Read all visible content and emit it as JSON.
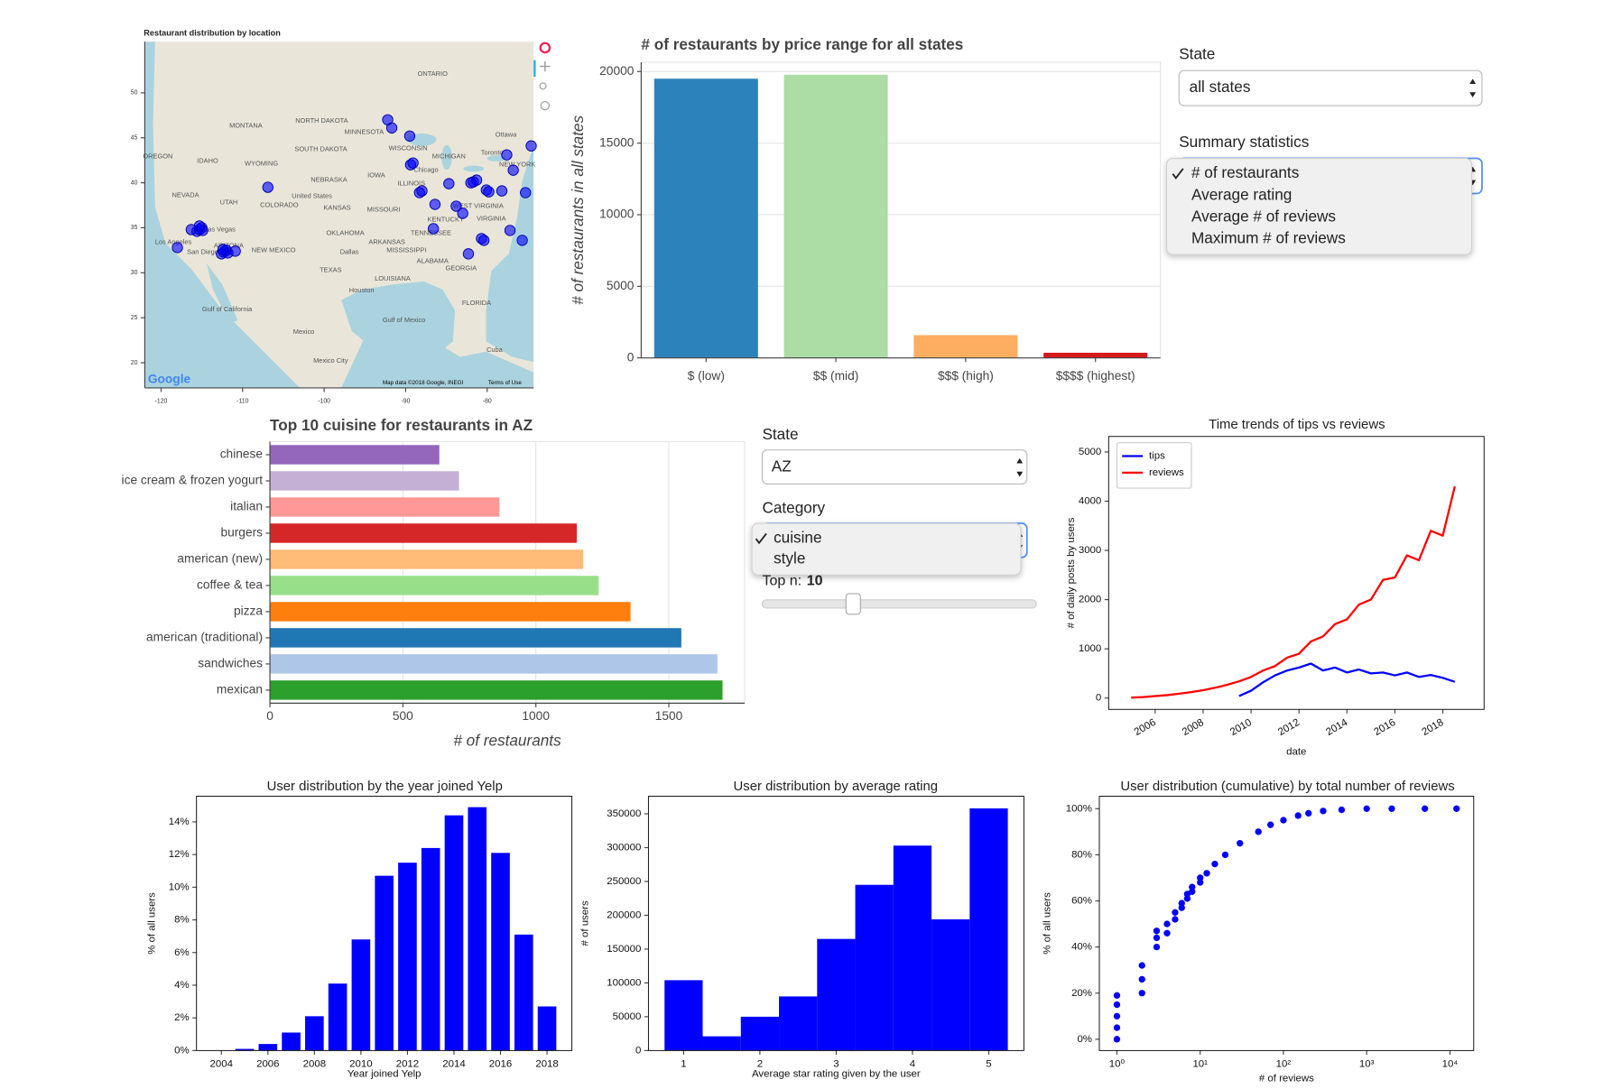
{
  "chart_data": [
    {
      "type": "map",
      "title": "Restaurant distribution by location",
      "xlim": [
        -122,
        -74.3
      ],
      "ylim": [
        17.2,
        55.7
      ],
      "xticks": [
        -120,
        -110,
        -100,
        -90,
        -80
      ],
      "yticks": [
        20,
        25,
        30,
        35,
        40,
        45,
        50
      ],
      "color": "#0000ff",
      "x": [
        -115.3,
        -115.0,
        -115.6,
        -114.9,
        -115.3,
        -112.3,
        -112.0,
        -112.6,
        -111.8,
        -112.4,
        -89.4,
        -89.1,
        -88.3,
        -88.0,
        -81.7,
        -81.3,
        -82.0,
        -80.1,
        -79.8,
        -80.7,
        -80.4,
        -116.3,
        -118,
        -110.9,
        -106.9,
        -84.7,
        -86.4,
        -78.2,
        -76.8,
        -75.3,
        -83,
        -77.2,
        -75.7,
        -86.6,
        -92.2,
        -89.5,
        -91.7,
        -83.8,
        -82.3,
        -77.6,
        -74.6
      ],
      "y": [
        34.8,
        35.0,
        34.6,
        34.7,
        35.2,
        32.3,
        32.5,
        32.1,
        32.2,
        32.6,
        42.0,
        42.2,
        38.9,
        39.1,
        40.1,
        40.3,
        40.0,
        39.2,
        39.0,
        33.8,
        33.6,
        34.8,
        32.8,
        32.4,
        39.5,
        39.9,
        37.6,
        39.1,
        41.4,
        38.9,
        36.6,
        34.7,
        33.6,
        34.9,
        47.0,
        45.2,
        46.1,
        37.4,
        32.1,
        43.1,
        44.1
      ],
      "places": [
        {
          "name": "ONTARIO",
          "lon": -86.7,
          "lat": 52.1
        },
        {
          "name": "MONTANA",
          "lon": -109.6,
          "lat": 46.3
        },
        {
          "name": "NORTH DAKOTA",
          "lon": -100.3,
          "lat": 46.9
        },
        {
          "name": "MINNESOTA",
          "lon": -95.1,
          "lat": 45.6
        },
        {
          "name": "SOUTH DAKOTA",
          "lon": -100.4,
          "lat": 43.7
        },
        {
          "name": "WISCONSIN",
          "lon": -89.7,
          "lat": 43.8
        },
        {
          "name": "MICHIGAN",
          "lon": -84.7,
          "lat": 42.9
        },
        {
          "name": "NEBRASKA",
          "lon": -99.4,
          "lat": 40.3
        },
        {
          "name": "IOWA",
          "lon": -93.6,
          "lat": 40.8
        },
        {
          "name": "United States",
          "lon": -101.5,
          "lat": 38.5
        },
        {
          "name": "NEVADA",
          "lon": -117,
          "lat": 38.6
        },
        {
          "name": "UTAH",
          "lon": -111.7,
          "lat": 37.8
        },
        {
          "name": "COLORADO",
          "lon": -105.5,
          "lat": 37.5
        },
        {
          "name": "KANSAS",
          "lon": -98.4,
          "lat": 37.2
        },
        {
          "name": "MISSOURI",
          "lon": -92.7,
          "lat": 37.0
        },
        {
          "name": "Las Vegas",
          "lon": -112.8,
          "lat": 34.8
        },
        {
          "name": "Los Angeles",
          "lon": -118.5,
          "lat": 33.4
        },
        {
          "name": "San Diego",
          "lon": -114.9,
          "lat": 32.3
        },
        {
          "name": "ARIZONA",
          "lon": -111.7,
          "lat": 33.0
        },
        {
          "name": "NEW MEXICO",
          "lon": -106.2,
          "lat": 32.5
        },
        {
          "name": "OKLAHOMA",
          "lon": -97.4,
          "lat": 34.4
        },
        {
          "name": "Dallas",
          "lon": -96.9,
          "lat": 32.3
        },
        {
          "name": "TEXAS",
          "lon": -99.2,
          "lat": 30.3
        },
        {
          "name": "Houston",
          "lon": -95.4,
          "lat": 28.0
        },
        {
          "name": "LOUISIANA",
          "lon": -91.6,
          "lat": 29.3
        },
        {
          "name": "Mexico",
          "lon": -102.5,
          "lat": 23.4
        },
        {
          "name": "Mexico City",
          "lon": -99.2,
          "lat": 20.2
        },
        {
          "name": "Cuba",
          "lon": -79.1,
          "lat": 21.4
        },
        {
          "name": "Ottawa",
          "lon": -77.7,
          "lat": 45.3
        },
        {
          "name": "Toronto",
          "lon": -79.4,
          "lat": 43.3
        },
        {
          "name": "Chicago",
          "lon": -87.5,
          "lat": 41.4
        },
        {
          "name": "IDAHO",
          "lon": -114.3,
          "lat": 42.4
        },
        {
          "name": "WYOMING",
          "lon": -107.7,
          "lat": 42.1
        },
        {
          "name": "OREGON",
          "lon": -120.4,
          "lat": 42.9
        },
        {
          "name": "ILLINOIS",
          "lon": -89.3,
          "lat": 39.9
        },
        {
          "name": "KENTUCKY",
          "lon": -85.1,
          "lat": 35.9
        },
        {
          "name": "TENNESSEE",
          "lon": -86.9,
          "lat": 34.4
        },
        {
          "name": "ARKANSAS",
          "lon": -92.3,
          "lat": 33.4
        },
        {
          "name": "MISSISSIPPI",
          "lon": -89.9,
          "lat": 32.5
        },
        {
          "name": "ALABAMA",
          "lon": -86.7,
          "lat": 31.3
        },
        {
          "name": "GEORGIA",
          "lon": -83.2,
          "lat": 30.5
        },
        {
          "name": "FLORIDA",
          "lon": -81.3,
          "lat": 26.6
        },
        {
          "name": "NEW YORK",
          "lon": -76.3,
          "lat": 42.0
        },
        {
          "name": "WEST VIRGINIA",
          "lon": -81.1,
          "lat": 37.4
        },
        {
          "name": "VIRGINIA",
          "lon": -79.5,
          "lat": 36.0
        },
        {
          "name": "Gulf of Mexico",
          "lon": -90.2,
          "lat": 24.7
        },
        {
          "name": "Gulf of California",
          "lon": -111.9,
          "lat": 25.9
        }
      ],
      "attribution": "Map data ©2018 Google, INEGI",
      "terms": "Terms of Use",
      "logo": "Google"
    },
    {
      "type": "bar",
      "title": "# of restaurants by price range for all states",
      "ylabel": "# of restaurants in all states",
      "categories": [
        "$ (low)",
        "$$ (mid)",
        "$$$ (high)",
        "$$$$ (highest)"
      ],
      "values": [
        19500,
        19780,
        1590,
        360
      ],
      "colors": [
        "#2c83bb",
        "#abdda4",
        "#fdae61",
        "#d7191c"
      ],
      "ylim": [
        0,
        20650
      ],
      "yticks": [
        0,
        5000,
        10000,
        15000,
        20000
      ],
      "grid": "y"
    },
    {
      "type": "barh",
      "title": "Top 10 cuisine for restaurants in AZ",
      "xlabel": "# of restaurants",
      "categories": [
        "chinese",
        "ice cream & frozen yogurt",
        "italian",
        "burgers",
        "american (new)",
        "coffee & tea",
        "pizza",
        "american (traditional)",
        "sandwiches",
        "mexican"
      ],
      "values": [
        637,
        711,
        863,
        1154,
        1178,
        1236,
        1356,
        1547,
        1683,
        1702
      ],
      "colors": [
        "#9467bd",
        "#c5b0d5",
        "#ff9896",
        "#d62728",
        "#ffbb78",
        "#98df8a",
        "#ff7f0e",
        "#1f77b4",
        "#aec7e8",
        "#2ca02c"
      ],
      "xlim": [
        0,
        1785
      ],
      "xticks": [
        0,
        500,
        1000,
        1500
      ],
      "grid": "x"
    },
    {
      "type": "line",
      "title": "Time trends of tips vs reviews",
      "xlabel": "date",
      "ylabel": "# of daily posts by users",
      "x": [
        2005,
        2005.5,
        2006,
        2006.5,
        2007,
        2007.5,
        2008,
        2008.5,
        2009,
        2009.5,
        2010,
        2010.5,
        2011,
        2011.5,
        2012,
        2012.5,
        2013,
        2013.5,
        2014,
        2014.5,
        2015,
        2015.5,
        2016,
        2016.5,
        2017,
        2017.5,
        2018,
        2018.5
      ],
      "series": [
        {
          "name": "tips",
          "color": "#0000ff",
          "values": [
            null,
            null,
            null,
            null,
            null,
            null,
            null,
            null,
            null,
            40,
            150,
            320,
            460,
            560,
            620,
            700,
            560,
            620,
            520,
            580,
            500,
            520,
            460,
            520,
            430,
            470,
            410,
            330
          ]
        },
        {
          "name": "reviews",
          "color": "#ff0000",
          "values": [
            10,
            20,
            40,
            60,
            90,
            120,
            160,
            210,
            270,
            340,
            430,
            560,
            650,
            820,
            900,
            1150,
            1250,
            1500,
            1600,
            1900,
            2000,
            2400,
            2450,
            2900,
            2800,
            3400,
            3300,
            4300
          ]
        }
      ],
      "xlim": [
        2004.06,
        2019.72
      ],
      "ylim": [
        -230,
        5315
      ],
      "xticks": [
        2006,
        2008,
        2010,
        2012,
        2014,
        2016,
        2018
      ],
      "yticks": [
        0,
        1000,
        2000,
        3000,
        4000,
        5000
      ],
      "xtick_rotation": 30,
      "legend": "upper left"
    },
    {
      "type": "bar",
      "title": "User distribution by the year joined Yelp",
      "xlabel": "Year joined Yelp",
      "ylabel": "% of all users",
      "x": [
        2004,
        2005,
        2006,
        2007,
        2008,
        2009,
        2010,
        2011,
        2012,
        2013,
        2014,
        2015,
        2016,
        2017,
        2018
      ],
      "values": [
        0.0,
        0.1,
        0.4,
        1.1,
        2.1,
        4.1,
        6.8,
        10.7,
        11.5,
        12.4,
        14.4,
        14.9,
        12.1,
        7.1,
        2.7
      ],
      "color": "#0000ff",
      "xlim": [
        2002.93,
        2019.07
      ],
      "ylim": [
        0,
        15.57
      ],
      "xticks": [
        2004,
        2006,
        2008,
        2010,
        2012,
        2014,
        2016,
        2018
      ],
      "yticks": [
        {
          "value": 0,
          "label": "0%"
        },
        {
          "value": 2,
          "label": "2%"
        },
        {
          "value": 4,
          "label": "4%"
        },
        {
          "value": 6,
          "label": "6%"
        },
        {
          "value": 8,
          "label": "8%"
        },
        {
          "value": 10,
          "label": "10%"
        },
        {
          "value": 12,
          "label": "12%"
        },
        {
          "value": 14,
          "label": "14%"
        }
      ]
    },
    {
      "type": "histogram",
      "title": "User distribution by average rating",
      "xlabel": "Average star rating given by the user",
      "ylabel": "# of users",
      "bins": [
        0.75,
        1.25,
        1.75,
        2.25,
        2.75,
        3.25,
        3.75,
        4.25,
        4.75,
        5.25
      ],
      "values": [
        104000,
        21000,
        50000,
        80000,
        165000,
        245000,
        303000,
        194000,
        358000
      ],
      "color": "#0000ff",
      "xlim": [
        0.539,
        5.46
      ],
      "ylim": [
        0,
        376000
      ],
      "xticks": [
        1,
        2,
        3,
        4,
        5
      ],
      "yticks": [
        0,
        50000,
        100000,
        150000,
        200000,
        250000,
        300000,
        350000
      ]
    },
    {
      "type": "scatter",
      "title": "User distribution (cumulative) by total number of reviews",
      "xlabel": "# of reviews",
      "ylabel": "% of all users",
      "x": [
        1,
        1,
        1,
        1,
        1,
        2,
        2,
        2,
        3,
        3,
        3,
        4,
        4,
        5,
        5,
        6,
        6,
        7,
        7,
        8,
        8,
        10,
        10,
        12,
        15,
        20,
        30,
        50,
        70,
        100,
        150,
        200,
        300,
        500,
        1000,
        2000,
        5000,
        12000
      ],
      "y": [
        0,
        5,
        10,
        15,
        19,
        20,
        26,
        32,
        40,
        44,
        47,
        46,
        50,
        52,
        55,
        57,
        59,
        61,
        63,
        64,
        66,
        68,
        70,
        72,
        76,
        80,
        85,
        90,
        93,
        95,
        97,
        98,
        99,
        99.5,
        100,
        100,
        100,
        100
      ],
      "color": "#0000ff",
      "xscale": "log",
      "xlim": [
        0.615,
        19300
      ],
      "ylim": [
        -4.9,
        105.4
      ],
      "xticks": [
        {
          "value": 1,
          "label": "10⁰"
        },
        {
          "value": 10,
          "label": "10¹"
        },
        {
          "value": 100,
          "label": "10²"
        },
        {
          "value": 1000,
          "label": "10³"
        },
        {
          "value": 10000,
          "label": "10⁴"
        }
      ],
      "yticks": [
        {
          "value": 0,
          "label": "0%"
        },
        {
          "value": 20,
          "label": "20%"
        },
        {
          "value": 40,
          "label": "40%"
        },
        {
          "value": 60,
          "label": "60%"
        },
        {
          "value": 80,
          "label": "80%"
        },
        {
          "value": 100,
          "label": "100%"
        }
      ]
    }
  ],
  "controls": {
    "price_state_label": "State",
    "price_state_value": "all states",
    "summary_label": "Summary statistics",
    "summary_options": [
      "# of restaurants",
      "Average rating",
      "Average # of reviews",
      "Maximum # of reviews"
    ],
    "cuisine_state_label": "State",
    "cuisine_state_value": "AZ",
    "category_label": "Category",
    "category_options": [
      "cuisine",
      "style"
    ],
    "topn_label": "Top n:",
    "topn_value": 10
  }
}
